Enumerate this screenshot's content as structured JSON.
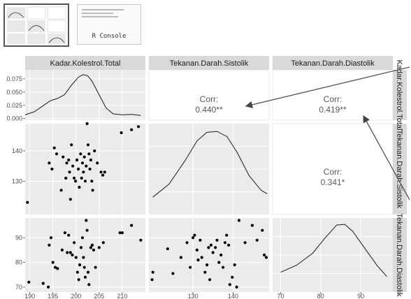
{
  "thumbnails": {
    "console_label": "R Console"
  },
  "strips": {
    "top": [
      "Kadar.Kolestrol.Total",
      "Tekanan.Darah.Sistolik",
      "Tekanan.Darah.Diastolik"
    ],
    "right": [
      "Kadar.Kolestrol.Total",
      "Tekanan.Darah.Sistolik",
      "Tekanan.Darah.Diastolik"
    ]
  },
  "correlations": {
    "c12": {
      "label": "Corr:",
      "value": "0.440**"
    },
    "c13": {
      "label": "Corr:",
      "value": "0.419**"
    },
    "c23": {
      "label": "Corr:",
      "value": "0.341*"
    }
  },
  "chart_data": {
    "type": "scatter",
    "layout": "pairs-matrix",
    "variables": [
      "Kadar.Kolestrol.Total",
      "Tekanan.Darah.Sistolik",
      "Tekanan.Darah.Diastolik"
    ],
    "density_y_ticks": [
      "0.075",
      "0.050",
      "0.025",
      "0.000"
    ],
    "row2_y_ticks": [
      "140",
      "130"
    ],
    "row3_y_ticks": [
      "90",
      "80",
      "70"
    ],
    "x_ticks_col1": [
      "190",
      "195",
      "200",
      "205",
      "210"
    ],
    "x_ticks_col2": [
      "130",
      "140"
    ],
    "x_ticks_col3": [
      "70",
      "80",
      "90"
    ],
    "ranges": {
      "kolestrol": [
        189,
        215
      ],
      "sistolik": [
        119,
        149
      ],
      "diastolik": [
        68,
        98
      ]
    },
    "density_col1": [
      [
        189,
        0.007
      ],
      [
        191,
        0.013
      ],
      [
        193,
        0.025
      ],
      [
        194.5,
        0.034
      ],
      [
        196,
        0.038
      ],
      [
        197.5,
        0.045
      ],
      [
        199,
        0.063
      ],
      [
        200.5,
        0.078
      ],
      [
        201.5,
        0.083
      ],
      [
        202.5,
        0.081
      ],
      [
        203.5,
        0.07
      ],
      [
        205,
        0.045
      ],
      [
        206.5,
        0.02
      ],
      [
        208,
        0.009
      ],
      [
        210,
        0.007
      ],
      [
        212,
        0.008
      ],
      [
        214,
        0.006
      ]
    ],
    "density_col2": [
      [
        120,
        0.2
      ],
      [
        124,
        0.35
      ],
      [
        128,
        0.62
      ],
      [
        131,
        0.85
      ],
      [
        133.5,
        0.95
      ],
      [
        136,
        0.96
      ],
      [
        138.5,
        0.9
      ],
      [
        141,
        0.72
      ],
      [
        144,
        0.45
      ],
      [
        147,
        0.28
      ],
      [
        148.5,
        0.24
      ]
    ],
    "density_col3": [
      [
        70,
        0.28
      ],
      [
        74,
        0.38
      ],
      [
        78,
        0.55
      ],
      [
        81,
        0.76
      ],
      [
        84,
        0.95
      ],
      [
        86,
        0.96
      ],
      [
        88,
        0.86
      ],
      [
        91,
        0.62
      ],
      [
        94,
        0.38
      ],
      [
        96.5,
        0.22
      ]
    ],
    "points_kolestrol_sistolik": [
      [
        189.5,
        123
      ],
      [
        194.2,
        136
      ],
      [
        194.8,
        134
      ],
      [
        195.3,
        141
      ],
      [
        195.8,
        139
      ],
      [
        196.8,
        127
      ],
      [
        197.2,
        138
      ],
      [
        197.8,
        131
      ],
      [
        198.0,
        136
      ],
      [
        198.4,
        137
      ],
      [
        198.6,
        133
      ],
      [
        198.8,
        124
      ],
      [
        199.0,
        142
      ],
      [
        199.3,
        135
      ],
      [
        199.6,
        131
      ],
      [
        199.9,
        130
      ],
      [
        200.2,
        137
      ],
      [
        200.5,
        134
      ],
      [
        200.7,
        128
      ],
      [
        201.0,
        139
      ],
      [
        201.2,
        131
      ],
      [
        201.4,
        136
      ],
      [
        201.6,
        133
      ],
      [
        201.8,
        138
      ],
      [
        202.0,
        130
      ],
      [
        202.2,
        135
      ],
      [
        202.4,
        149
      ],
      [
        202.6,
        142
      ],
      [
        202.8,
        139
      ],
      [
        203.0,
        134
      ],
      [
        203.2,
        137
      ],
      [
        203.4,
        130
      ],
      [
        203.6,
        127
      ],
      [
        204.0,
        140
      ],
      [
        204.6,
        136
      ],
      [
        205.4,
        133
      ],
      [
        205.8,
        132
      ],
      [
        206.2,
        133
      ],
      [
        209.8,
        146
      ],
      [
        212.0,
        147
      ],
      [
        213.5,
        148
      ]
    ],
    "points_kolestrol_diastolik": [
      [
        189.8,
        72
      ],
      [
        192.9,
        71.5
      ],
      [
        194.0,
        70
      ],
      [
        194.2,
        87
      ],
      [
        194.6,
        90
      ],
      [
        195.0,
        80
      ],
      [
        195.5,
        78
      ],
      [
        196.0,
        77.5
      ],
      [
        197.0,
        85
      ],
      [
        197.6,
        92
      ],
      [
        198.1,
        84
      ],
      [
        198.4,
        91
      ],
      [
        198.8,
        84
      ],
      [
        199.2,
        83
      ],
      [
        199.6,
        88
      ],
      [
        200.0,
        82
      ],
      [
        200.3,
        76
      ],
      [
        200.6,
        73
      ],
      [
        200.8,
        79
      ],
      [
        201.1,
        86
      ],
      [
        201.4,
        90
      ],
      [
        201.6,
        82
      ],
      [
        201.8,
        78
      ],
      [
        202.0,
        74
      ],
      [
        202.2,
        97
      ],
      [
        202.4,
        93
      ],
      [
        202.6,
        76
      ],
      [
        202.8,
        71
      ],
      [
        203.2,
        86
      ],
      [
        203.5,
        87
      ],
      [
        203.8,
        85
      ],
      [
        204.2,
        78
      ],
      [
        205.0,
        86
      ],
      [
        205.9,
        88
      ],
      [
        209.5,
        92
      ],
      [
        210.0,
        92
      ],
      [
        212.0,
        95
      ],
      [
        214.0,
        89
      ]
    ],
    "points_sistolik_diastolik": [
      [
        119.8,
        73
      ],
      [
        120.0,
        76
      ],
      [
        123.7,
        85.5
      ],
      [
        125.0,
        75.5
      ],
      [
        127.0,
        82
      ],
      [
        128.5,
        88
      ],
      [
        129.3,
        78
      ],
      [
        130.0,
        90
      ],
      [
        130.4,
        91
      ],
      [
        131.0,
        85
      ],
      [
        131.3,
        81
      ],
      [
        131.8,
        89
      ],
      [
        132.2,
        82
      ],
      [
        133.0,
        76
      ],
      [
        133.5,
        79
      ],
      [
        133.9,
        86
      ],
      [
        134.2,
        73
      ],
      [
        134.5,
        87
      ],
      [
        135.0,
        84
      ],
      [
        135.6,
        86
      ],
      [
        136.0,
        89
      ],
      [
        136.5,
        80
      ],
      [
        137.0,
        83
      ],
      [
        137.5,
        78
      ],
      [
        138.0,
        88
      ],
      [
        138.4,
        91
      ],
      [
        138.9,
        87
      ],
      [
        139.2,
        71
      ],
      [
        139.8,
        74
      ],
      [
        140.4,
        79
      ],
      [
        140.9,
        70
      ],
      [
        141.5,
        97
      ],
      [
        143.0,
        88
      ],
      [
        144.8,
        95
      ],
      [
        146.0,
        89
      ],
      [
        147.3,
        93
      ],
      [
        147.8,
        83
      ],
      [
        148.3,
        82
      ]
    ]
  }
}
